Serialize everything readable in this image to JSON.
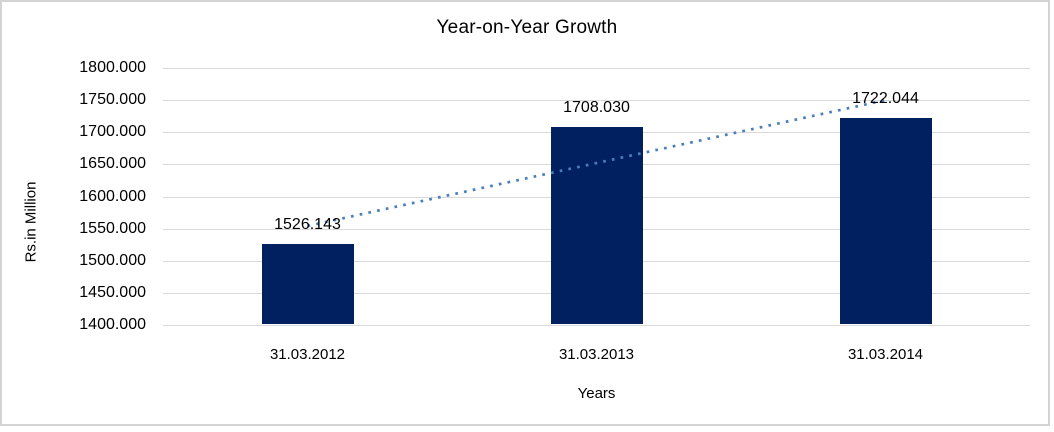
{
  "chart_data": {
    "type": "bar",
    "title": "Year-on-Year Growth",
    "xlabel": "Years",
    "ylabel": "Rs.in Million",
    "categories": [
      "31.03.2012",
      "31.03.2013",
      "31.03.2014"
    ],
    "values": [
      1526.143,
      1708.03,
      1722.044
    ],
    "data_labels": [
      "1526.143",
      "1708.030",
      "1722.044"
    ],
    "ylim": [
      1400,
      1800
    ],
    "ytick_step": 50,
    "ytick_labels": [
      "1800.000",
      "1750.000",
      "1700.000",
      "1650.000",
      "1600.000",
      "1550.000",
      "1500.000",
      "1450.000",
      "1400.000"
    ],
    "grid": true,
    "legend": "none",
    "trendline": {
      "type": "linear",
      "style": "dotted"
    },
    "colors": {
      "bar": "#002060",
      "trendline": "#4a7ebb",
      "gridline": "#d9d9d9",
      "axis_line": "#d9d9d9",
      "frame_border": "#d3d3d3",
      "text": "#000000",
      "background": "#ffffff"
    }
  }
}
